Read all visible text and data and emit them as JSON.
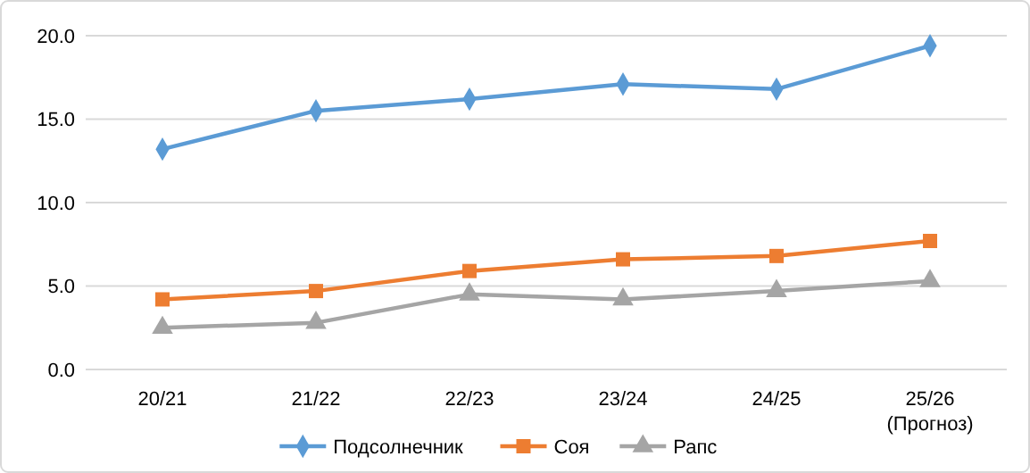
{
  "chart_data": {
    "type": "line",
    "categories": [
      "20/21",
      "21/22",
      "22/23",
      "23/24",
      "24/25",
      "25/26 (Прогноз)"
    ],
    "series": [
      {
        "name": "Подсолнечник",
        "color": "#5b9bd5",
        "marker": "diamond",
        "values": [
          13.2,
          15.5,
          16.2,
          17.1,
          16.8,
          19.4
        ]
      },
      {
        "name": "Соя",
        "color": "#ed7d31",
        "marker": "square",
        "values": [
          4.2,
          4.7,
          5.9,
          6.6,
          6.8,
          7.7
        ]
      },
      {
        "name": "Рапс",
        "color": "#a5a5a5",
        "marker": "triangle",
        "values": [
          2.5,
          2.8,
          4.5,
          4.2,
          4.7,
          5.3
        ]
      }
    ],
    "ylim": [
      0,
      20
    ],
    "yticks": [
      {
        "value": 0,
        "label": "0.0"
      },
      {
        "value": 5,
        "label": "5.0"
      },
      {
        "value": 10,
        "label": "10.0"
      },
      {
        "value": 15,
        "label": "15.0"
      },
      {
        "value": 20,
        "label": "20.0"
      }
    ],
    "grid": "y",
    "legend": "bottom"
  }
}
